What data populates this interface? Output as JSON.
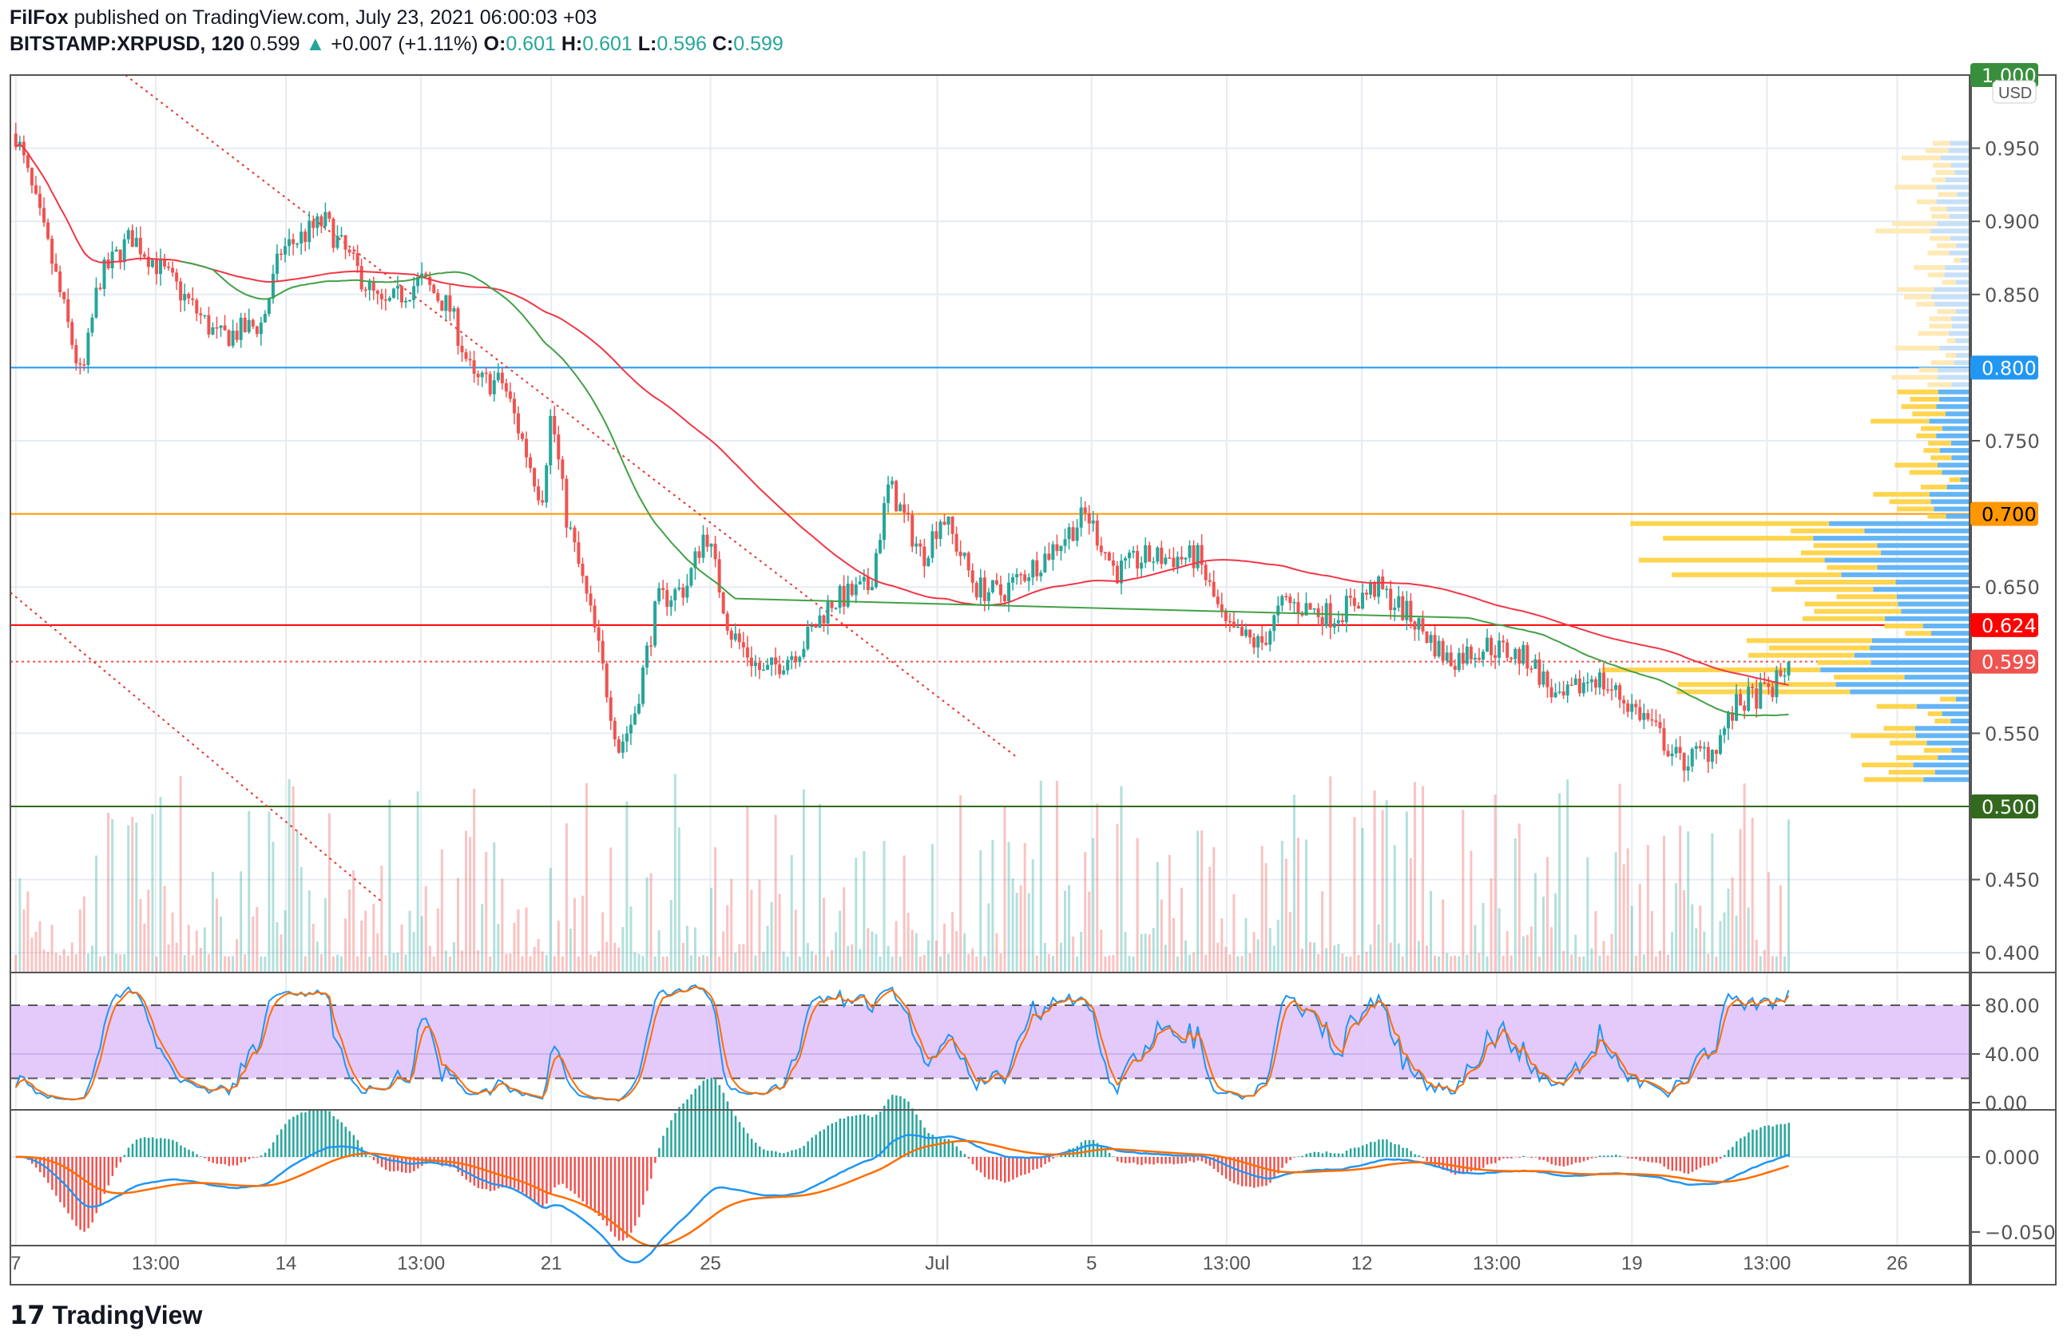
{
  "header": {
    "author": "FilFox",
    "published": "published on TradingView.com, July 23, 2021 06:00:03 +03",
    "symbol": "BITSTAMP:XRPUSD, 120",
    "last": "0.599",
    "arrow": "▲",
    "change": "+0.007 (+1.11%)",
    "o_label": "O:",
    "o": "0.601",
    "h_label": "H:",
    "h": "0.601",
    "l_label": "L:",
    "l": "0.596",
    "c_label": "C:",
    "c": "0.599"
  },
  "currency": "USD",
  "footer": {
    "brand": "TradingView"
  },
  "colors": {
    "up": "#26a69a",
    "down": "#ef5350",
    "ma_long": "#f23645",
    "ma_short": "#43a047",
    "stoch_k": "#2196f3",
    "stoch_d": "#ff6d00",
    "stoch_band": "#e1c4fb"
  },
  "chart_data": {
    "type": "candlestick",
    "symbol": "BITSTAMP:XRPUSD",
    "interval": "120",
    "price_ticks": [
      "0.950",
      "0.900",
      "0.850",
      "0.750",
      "0.650",
      "0.550",
      "0.450",
      "0.400"
    ],
    "levels": [
      {
        "label": "1.000",
        "value": 1.0,
        "color": "#388e3c"
      },
      {
        "label": "0.800",
        "value": 0.8,
        "color": "#2196f3"
      },
      {
        "label": "0.700",
        "value": 0.7,
        "color": "#ff9800"
      },
      {
        "label": "0.624",
        "value": 0.624,
        "color": "#ff0000"
      },
      {
        "label": "0.599",
        "value": 0.599,
        "color": "#ef5350",
        "dotted": true
      },
      {
        "label": "0.500",
        "value": 0.5,
        "color": "#33691e"
      }
    ],
    "time_labels": [
      {
        "t": "7",
        "day": 0
      },
      {
        "t": "13:00",
        "day": 2.9
      },
      {
        "t": "14",
        "day": 5.6
      },
      {
        "t": "13:00",
        "day": 8.4
      },
      {
        "t": "21",
        "day": 11.1
      },
      {
        "t": "25",
        "day": 14.4
      },
      {
        "t": "Jul",
        "day": 19.1
      },
      {
        "t": "5",
        "day": 22.3
      },
      {
        "t": "13:00",
        "day": 25.1
      },
      {
        "t": "12",
        "day": 27.9
      },
      {
        "t": "13:00",
        "day": 30.7
      },
      {
        "t": "19",
        "day": 33.5
      },
      {
        "t": "13:00",
        "day": 36.3
      },
      {
        "t": "26",
        "day": 39
      }
    ],
    "close_path": [
      [
        0,
        0.96
      ],
      [
        0.77,
        0.87
      ],
      [
        1.37,
        0.79
      ],
      [
        1.72,
        0.86
      ],
      [
        2.4,
        0.89
      ],
      [
        3.2,
        0.86
      ],
      [
        4.2,
        0.82
      ],
      [
        5.1,
        0.83
      ],
      [
        5.5,
        0.88
      ],
      [
        6.4,
        0.9
      ],
      [
        7.6,
        0.84
      ],
      [
        8.4,
        0.86
      ],
      [
        9.0,
        0.84
      ],
      [
        9.5,
        0.79
      ],
      [
        10.1,
        0.79
      ],
      [
        10.9,
        0.71
      ],
      [
        11.1,
        0.77
      ],
      [
        11.4,
        0.7
      ],
      [
        12.0,
        0.62
      ],
      [
        12.5,
        0.54
      ],
      [
        12.8,
        0.56
      ],
      [
        13.3,
        0.64
      ],
      [
        13.9,
        0.65
      ],
      [
        14.3,
        0.69
      ],
      [
        14.8,
        0.62
      ],
      [
        15.5,
        0.59
      ],
      [
        16.3,
        0.61
      ],
      [
        16.9,
        0.64
      ],
      [
        17.7,
        0.65
      ],
      [
        18.1,
        0.72
      ],
      [
        18.8,
        0.67
      ],
      [
        19.2,
        0.7
      ],
      [
        19.9,
        0.65
      ],
      [
        20.4,
        0.645
      ],
      [
        21.3,
        0.67
      ],
      [
        22.2,
        0.7
      ],
      [
        22.8,
        0.66
      ],
      [
        23.4,
        0.67
      ],
      [
        24.5,
        0.67
      ],
      [
        25.1,
        0.62
      ],
      [
        25.8,
        0.61
      ],
      [
        26.3,
        0.64
      ],
      [
        27.3,
        0.63
      ],
      [
        28.2,
        0.65
      ],
      [
        28.9,
        0.63
      ],
      [
        29.7,
        0.6
      ],
      [
        30.5,
        0.61
      ],
      [
        31.4,
        0.6
      ],
      [
        32.0,
        0.57
      ],
      [
        32.7,
        0.59
      ],
      [
        33.8,
        0.56
      ],
      [
        34.5,
        0.53
      ],
      [
        35.2,
        0.54
      ],
      [
        35.7,
        0.57
      ],
      [
        36.4,
        0.58
      ],
      [
        36.8,
        0.599
      ]
    ],
    "stoch": {
      "ticks": [
        "80.00",
        "40.00",
        "0.00"
      ],
      "upper": 80,
      "lower": 20
    },
    "macd": {
      "ticks": [
        "0.000",
        "−0.050"
      ]
    }
  }
}
